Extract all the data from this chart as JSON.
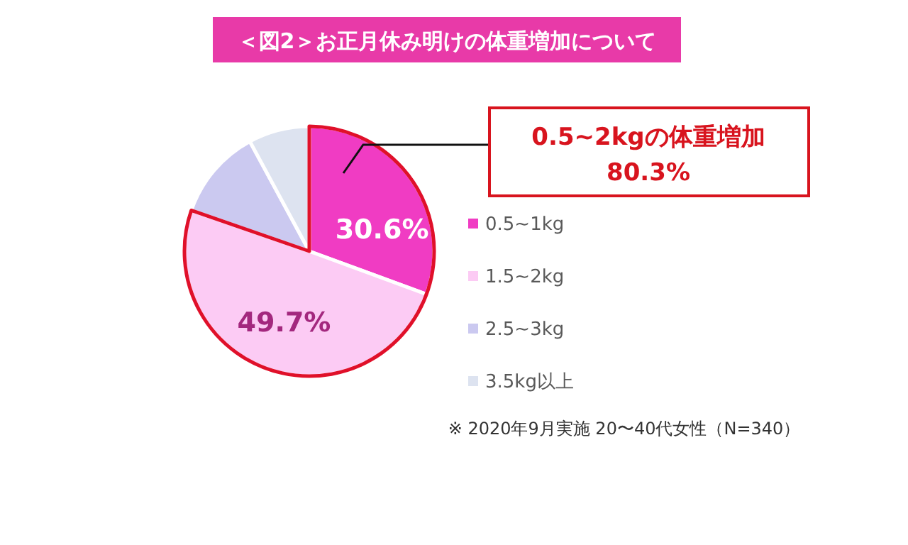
{
  "chart_data": {
    "type": "pie",
    "title": "＜図2＞お正月休み明けの体重増加について",
    "categories": [
      "0.5~1kg",
      "1.5~2kg",
      "2.5~3kg",
      "3.5kg以上"
    ],
    "values": [
      30.6,
      49.7,
      11.8,
      7.9
    ],
    "colors": [
      "#f03cc3",
      "#fccbf4",
      "#cbc9f0",
      "#dde3f0"
    ],
    "value_labels": [
      "30.6%",
      "49.7%",
      null,
      null
    ],
    "legend": "right",
    "annotations": [
      "0.5~2kgの体重増加",
      "80.3%",
      "※ 2020年9月実施 20〜40代女性（N=340）"
    ]
  }
}
